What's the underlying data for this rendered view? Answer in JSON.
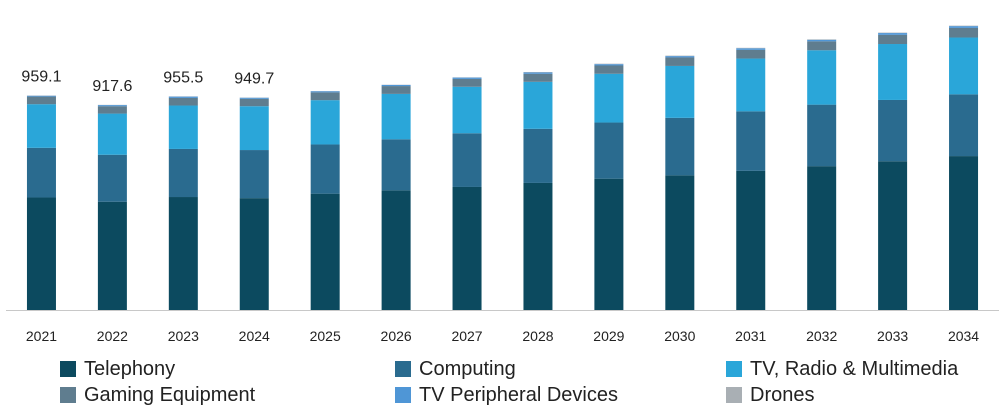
{
  "chart_data": {
    "type": "bar",
    "stacked": true,
    "title": "",
    "xlabel": "",
    "ylabel": "",
    "ylim": [
      0,
      1350
    ],
    "grid": false,
    "legend_position": "bottom",
    "categories": [
      "2021",
      "2022",
      "2023",
      "2024",
      "2025",
      "2026",
      "2027",
      "2028",
      "2029",
      "2030",
      "2031",
      "2032",
      "2033",
      "2034"
    ],
    "total_labels": [
      "959.1",
      "917.6",
      "955.5",
      "949.7",
      "",
      "",
      "",
      "",
      "",
      "",
      "",
      "",
      "",
      ""
    ],
    "series": [
      {
        "name": "Telephony",
        "color": "#0c4a5f",
        "values": [
          503,
          484,
          505,
          500,
          520,
          535,
          550,
          568,
          587,
          602,
          622,
          643,
          665,
          688
        ]
      },
      {
        "name": "Computing",
        "color": "#2a6b8f",
        "values": [
          222,
          210,
          215,
          215,
          220,
          228,
          240,
          242,
          251,
          257,
          266,
          275,
          274,
          276
        ]
      },
      {
        "name": "TV, Radio & Multimedia",
        "color": "#2aa6d9",
        "values": [
          195,
          184,
          194,
          196,
          198,
          203,
          208,
          210,
          218,
          232,
          236,
          243,
          250,
          254
        ]
      },
      {
        "name": "Gaming Equipment",
        "color": "#5f7d8f",
        "values": [
          34,
          33,
          34,
          33,
          35,
          35,
          35,
          36,
          37,
          38,
          39,
          40,
          41,
          43
        ]
      },
      {
        "name": "TV Peripheral Devices",
        "color": "#4f96d6",
        "values": [
          4,
          5,
          6,
          5,
          5,
          5,
          6,
          6,
          6,
          6,
          7,
          7,
          8,
          8
        ]
      },
      {
        "name": "Drones",
        "color": "#a9afb4",
        "values": [
          1,
          1,
          1,
          1,
          1,
          1,
          1,
          2,
          2,
          2,
          2,
          2,
          2,
          2
        ]
      }
    ]
  }
}
